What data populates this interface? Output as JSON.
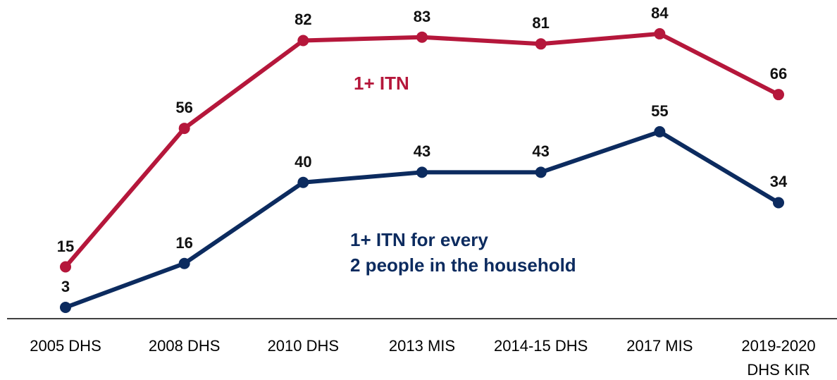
{
  "chart_data": {
    "type": "line",
    "categories": [
      "2005 DHS",
      "2008 DHS",
      "2010 DHS",
      "2013 MIS",
      "2014-15 DHS",
      "2017 MIS",
      "2019-2020\nDHS KIR"
    ],
    "series": [
      {
        "name": "1+ ITN",
        "color": "#b5173b",
        "values": [
          15,
          56,
          82,
          83,
          81,
          84,
          66
        ]
      },
      {
        "name": "1+ ITN for every\n2 people in the household",
        "color": "#0c2b5f",
        "values": [
          3,
          16,
          40,
          43,
          43,
          55,
          34
        ]
      }
    ],
    "ylim": [
      0,
      94
    ]
  }
}
